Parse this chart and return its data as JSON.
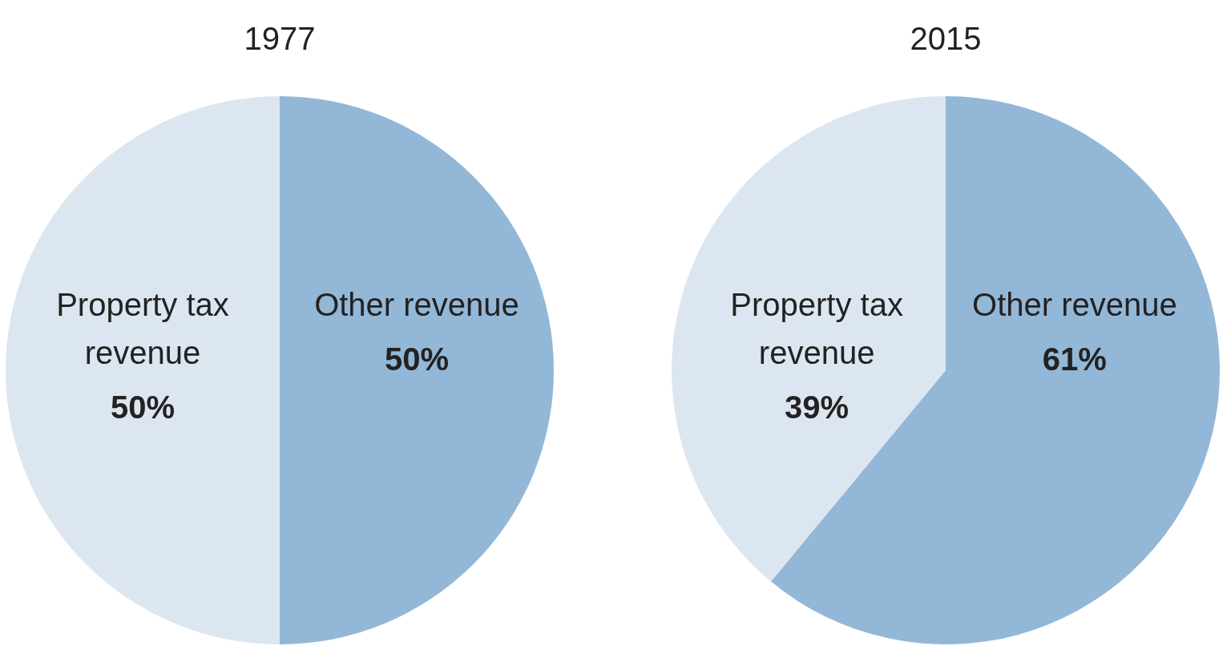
{
  "chart_data": [
    {
      "type": "pie",
      "title": "1977",
      "categories": [
        "Other revenue",
        "Property tax revenue"
      ],
      "values": [
        50,
        50
      ],
      "value_labels": [
        "50%",
        "50%"
      ],
      "colors": [
        "#93b7d7",
        "#dce6f0"
      ]
    },
    {
      "type": "pie",
      "title": "2015",
      "categories": [
        "Other revenue",
        "Property tax revenue"
      ],
      "values": [
        61,
        39
      ],
      "value_labels": [
        "61%",
        "39%"
      ],
      "colors": [
        "#93b7d7",
        "#dce6f0"
      ]
    }
  ]
}
